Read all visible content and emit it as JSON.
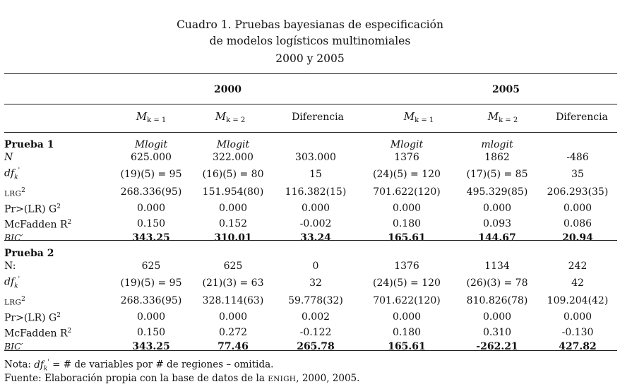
{
  "title": {
    "line1": "Cuadro 1. Pruebas bayesianas de especificación",
    "line2": "de modelos logísticos multinomiales",
    "line3": "2000 y 2005"
  },
  "years": [
    "2000",
    "2005"
  ],
  "columns": {
    "m_sym": "M",
    "k1": "k = 1",
    "k2": "k = 2",
    "diferencia": "Diferencia"
  },
  "prueba1": {
    "title": "Prueba 1",
    "model_row": [
      "Mlogit",
      "Mlogit",
      "",
      "Mlogit",
      "mlogit",
      ""
    ],
    "rows": [
      {
        "label": "N",
        "values": [
          "625.000",
          "322.000",
          "303.000",
          "1376",
          "1862",
          "-486"
        ]
      },
      {
        "label": "df",
        "values": [
          "(19)(5) = 95",
          "(16)(5) = 80",
          "15",
          "(24)(5) = 120",
          "(17)(5) = 85",
          "35"
        ]
      },
      {
        "label": "LRG",
        "values": [
          "268.336(95)",
          "151.954(80)",
          "116.382(15)",
          "701.622(120)",
          "495.329(85)",
          "206.293(35)"
        ]
      },
      {
        "label": "Pr>(LR) G",
        "values": [
          "0.000",
          "0.000",
          "0.000",
          "0.000",
          "0.000",
          "0.000"
        ]
      },
      {
        "label": "McFadden R",
        "values": [
          "0.150",
          "0.152",
          "-0.002",
          "0.180",
          "0.093",
          "0.086"
        ]
      },
      {
        "label": "BIC′",
        "values": [
          "343.25",
          "310.01",
          "33.24",
          "165.61",
          "144.67",
          "20.94"
        ]
      }
    ]
  },
  "prueba2": {
    "title": "Prueba 2",
    "rows": [
      {
        "label": "N:",
        "values": [
          "625",
          "625",
          "0",
          "1376",
          "1134",
          "242"
        ]
      },
      {
        "label": "df",
        "values": [
          "(19)(5) = 95",
          "(21)(3) = 63",
          "32",
          "(24)(5) = 120",
          "(26)(3) = 78",
          "42"
        ]
      },
      {
        "label": "LRG",
        "values": [
          "268.336(95)",
          "328.114(63)",
          "59.778(32)",
          "701.622(120)",
          "810.826(78)",
          "109.204(42)"
        ]
      },
      {
        "label": "Pr>(LR) G",
        "values": [
          "0.000",
          "0.000",
          "0.002",
          "0.000",
          "0.000",
          "0.000"
        ]
      },
      {
        "label": "McFadden R",
        "values": [
          "0.150",
          "0.272",
          "-0.122",
          "0.180",
          "0.310",
          "-0.130"
        ]
      },
      {
        "label": "BIC′",
        "values": [
          "343.25",
          "77.46",
          "265.78",
          "165.61",
          "-262.21",
          "427.82"
        ]
      }
    ]
  },
  "notes": {
    "nota_prefix": "Nota: ",
    "nota_rest": " = # de variables por # de regiones – omitida.",
    "fuente_prefix": "Fuente: Elaboración propia con la base de datos de la ",
    "fuente_enigh": "ENIGH",
    "fuente_rest": ", 2000, 2005."
  }
}
